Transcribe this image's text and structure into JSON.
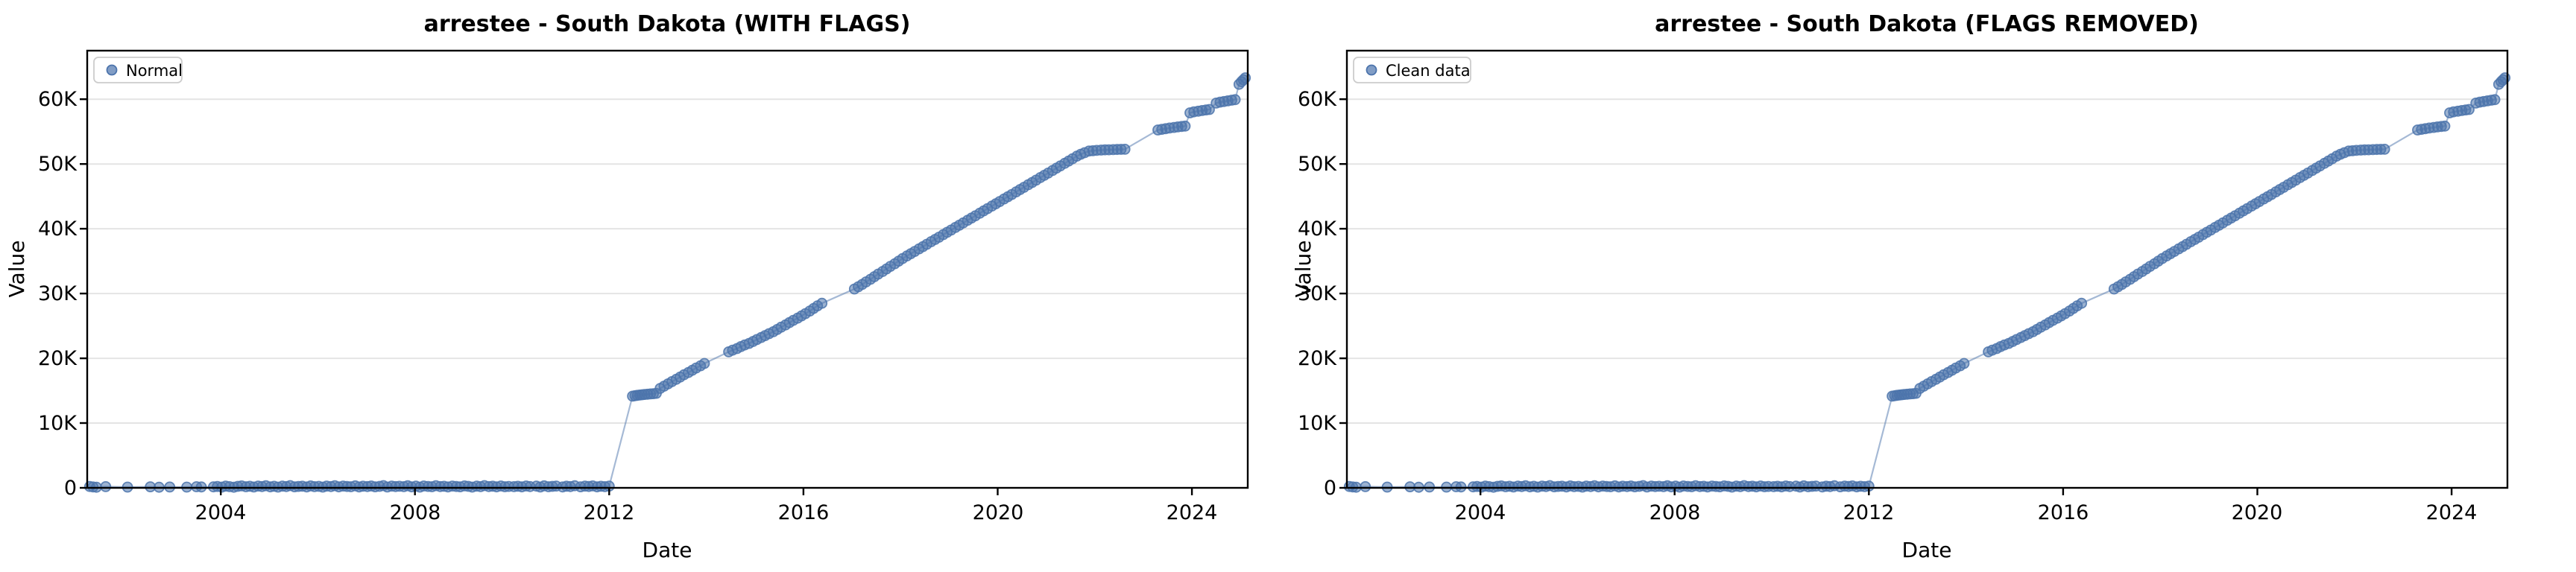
{
  "chart_data": {
    "type": "scatter",
    "charts": [
      {
        "title": "arrestee - South Dakota (WITH FLAGS)",
        "legend_label": "Normal"
      },
      {
        "title": "arrestee - South Dakota (FLAGS REMOVED)",
        "legend_label": "Clean data"
      }
    ],
    "xlabel": "Date",
    "ylabel": "Value",
    "x_ticks": [
      "2004",
      "2008",
      "2012",
      "2016",
      "2020",
      "2024"
    ],
    "x_tick_years": [
      2004,
      2008,
      2012,
      2016,
      2020,
      2024
    ],
    "y_tick_labels": [
      "0",
      "10K",
      "20K",
      "30K",
      "40K",
      "50K",
      "60K"
    ],
    "y_tick_values": [
      0,
      10000,
      20000,
      30000,
      40000,
      50000,
      60000
    ],
    "xlim": [
      2001.25,
      2025.15
    ],
    "ylim": [
      0,
      67500
    ],
    "grid": "horizontal",
    "legend_position": "upper-left",
    "colors": {
      "marker": "#4C74AC",
      "line": "#4C74AC",
      "grid": "#E4E4E4",
      "spine": "#000000",
      "legend_border": "#CCCCCC"
    },
    "points": [
      [
        2001.3,
        210
      ],
      [
        2001.37,
        140
      ],
      [
        2001.44,
        95
      ],
      [
        2001.63,
        180
      ],
      [
        2002.08,
        120
      ],
      [
        2002.55,
        160
      ],
      [
        2002.73,
        90
      ],
      [
        2002.95,
        130
      ],
      [
        2003.3,
        110
      ],
      [
        2003.5,
        170
      ],
      [
        2003.6,
        140
      ],
      [
        2003.85,
        150
      ],
      [
        2003.93,
        210
      ],
      [
        2004.02,
        120
      ],
      [
        2004.1,
        260
      ],
      [
        2004.18,
        180
      ],
      [
        2004.27,
        90
      ],
      [
        2004.35,
        230
      ],
      [
        2004.43,
        300
      ],
      [
        2004.52,
        170
      ],
      [
        2004.6,
        240
      ],
      [
        2004.68,
        130
      ],
      [
        2004.77,
        280
      ],
      [
        2004.85,
        200
      ],
      [
        2004.93,
        320
      ],
      [
        2005.02,
        150
      ],
      [
        2005.1,
        240
      ],
      [
        2005.18,
        110
      ],
      [
        2005.27,
        270
      ],
      [
        2005.35,
        190
      ],
      [
        2005.43,
        340
      ],
      [
        2005.52,
        160
      ],
      [
        2005.6,
        220
      ],
      [
        2005.68,
        250
      ],
      [
        2005.77,
        140
      ],
      [
        2005.85,
        300
      ],
      [
        2005.93,
        180
      ],
      [
        2006.02,
        230
      ],
      [
        2006.1,
        120
      ],
      [
        2006.18,
        260
      ],
      [
        2006.27,
        200
      ],
      [
        2006.35,
        330
      ],
      [
        2006.43,
        150
      ],
      [
        2006.52,
        280
      ],
      [
        2006.6,
        210
      ],
      [
        2006.68,
        170
      ],
      [
        2006.77,
        310
      ],
      [
        2006.85,
        140
      ],
      [
        2006.93,
        250
      ],
      [
        2007.02,
        190
      ],
      [
        2007.1,
        290
      ],
      [
        2007.18,
        160
      ],
      [
        2007.27,
        230
      ],
      [
        2007.35,
        350
      ],
      [
        2007.43,
        130
      ],
      [
        2007.52,
        270
      ],
      [
        2007.6,
        200
      ],
      [
        2007.68,
        240
      ],
      [
        2007.77,
        180
      ],
      [
        2007.85,
        320
      ],
      [
        2007.93,
        150
      ],
      [
        2008.02,
        260
      ],
      [
        2008.1,
        110
      ],
      [
        2008.18,
        290
      ],
      [
        2008.27,
        220
      ],
      [
        2008.35,
        170
      ],
      [
        2008.43,
        330
      ],
      [
        2008.52,
        190
      ],
      [
        2008.6,
        240
      ],
      [
        2008.68,
        140
      ],
      [
        2008.77,
        280
      ],
      [
        2008.85,
        210
      ],
      [
        2008.93,
        160
      ],
      [
        2009.02,
        300
      ],
      [
        2009.1,
        230
      ],
      [
        2009.18,
        120
      ],
      [
        2009.27,
        270
      ],
      [
        2009.35,
        180
      ],
      [
        2009.43,
        340
      ],
      [
        2009.52,
        200
      ],
      [
        2009.6,
        250
      ],
      [
        2009.68,
        150
      ],
      [
        2009.77,
        290
      ],
      [
        2009.85,
        170
      ],
      [
        2009.93,
        220
      ],
      [
        2010.04,
        180
      ],
      [
        2010.12,
        240
      ],
      [
        2010.2,
        150
      ],
      [
        2010.29,
        290
      ],
      [
        2010.37,
        200
      ],
      [
        2010.5,
        260
      ],
      [
        2010.58,
        130
      ],
      [
        2010.66,
        310
      ],
      [
        2010.75,
        170
      ],
      [
        2010.83,
        230
      ],
      [
        2010.91,
        280
      ],
      [
        2011.04,
        140
      ],
      [
        2011.12,
        250
      ],
      [
        2011.2,
        190
      ],
      [
        2011.29,
        320
      ],
      [
        2011.41,
        160
      ],
      [
        2011.5,
        270
      ],
      [
        2011.58,
        210
      ],
      [
        2011.66,
        300
      ],
      [
        2011.75,
        150
      ],
      [
        2011.83,
        240
      ],
      [
        2011.91,
        180
      ],
      [
        2012.0,
        260
      ],
      [
        2012.48,
        14150
      ],
      [
        2012.53,
        14230
      ],
      [
        2012.58,
        14280
      ],
      [
        2012.63,
        14330
      ],
      [
        2012.68,
        14370
      ],
      [
        2012.73,
        14420
      ],
      [
        2012.79,
        14460
      ],
      [
        2012.85,
        14500
      ],
      [
        2012.91,
        14540
      ],
      [
        2012.97,
        14590
      ],
      [
        2013.05,
        15350
      ],
      [
        2013.13,
        15700
      ],
      [
        2013.21,
        16050
      ],
      [
        2013.29,
        16400
      ],
      [
        2013.38,
        16750
      ],
      [
        2013.46,
        17100
      ],
      [
        2013.54,
        17450
      ],
      [
        2013.63,
        17800
      ],
      [
        2013.71,
        18150
      ],
      [
        2013.79,
        18500
      ],
      [
        2013.88,
        18850
      ],
      [
        2013.96,
        19200
      ],
      [
        2014.46,
        21000
      ],
      [
        2014.54,
        21250
      ],
      [
        2014.63,
        21500
      ],
      [
        2014.71,
        21800
      ],
      [
        2014.79,
        22050
      ],
      [
        2014.88,
        22300
      ],
      [
        2014.96,
        22600
      ],
      [
        2015.04,
        22900
      ],
      [
        2015.13,
        23200
      ],
      [
        2015.21,
        23500
      ],
      [
        2015.29,
        23800
      ],
      [
        2015.38,
        24100
      ],
      [
        2015.46,
        24450
      ],
      [
        2015.54,
        24800
      ],
      [
        2015.63,
        25150
      ],
      [
        2015.71,
        25500
      ],
      [
        2015.79,
        25850
      ],
      [
        2015.88,
        26200
      ],
      [
        2015.96,
        26550
      ],
      [
        2016.04,
        26900
      ],
      [
        2016.13,
        27300
      ],
      [
        2016.21,
        27700
      ],
      [
        2016.29,
        28100
      ],
      [
        2016.38,
        28500
      ],
      [
        2017.05,
        30700
      ],
      [
        2017.13,
        31050
      ],
      [
        2017.21,
        31400
      ],
      [
        2017.29,
        31800
      ],
      [
        2017.38,
        32200
      ],
      [
        2017.46,
        32600
      ],
      [
        2017.54,
        33000
      ],
      [
        2017.63,
        33400
      ],
      [
        2017.71,
        33800
      ],
      [
        2017.79,
        34200
      ],
      [
        2017.88,
        34600
      ],
      [
        2017.96,
        35000
      ],
      [
        2018.04,
        35400
      ],
      [
        2018.13,
        35800
      ],
      [
        2018.21,
        36150
      ],
      [
        2018.29,
        36500
      ],
      [
        2018.38,
        36900
      ],
      [
        2018.46,
        37250
      ],
      [
        2018.54,
        37600
      ],
      [
        2018.63,
        38000
      ],
      [
        2018.71,
        38350
      ],
      [
        2018.79,
        38700
      ],
      [
        2018.88,
        39100
      ],
      [
        2018.96,
        39450
      ],
      [
        2019.04,
        39800
      ],
      [
        2019.13,
        40200
      ],
      [
        2019.21,
        40550
      ],
      [
        2019.29,
        40900
      ],
      [
        2019.38,
        41300
      ],
      [
        2019.46,
        41650
      ],
      [
        2019.54,
        42000
      ],
      [
        2019.63,
        42400
      ],
      [
        2019.71,
        42750
      ],
      [
        2019.79,
        43100
      ],
      [
        2019.88,
        43500
      ],
      [
        2019.96,
        43850
      ],
      [
        2020.04,
        44200
      ],
      [
        2020.13,
        44600
      ],
      [
        2020.21,
        44950
      ],
      [
        2020.29,
        45300
      ],
      [
        2020.38,
        45700
      ],
      [
        2020.46,
        46050
      ],
      [
        2020.54,
        46400
      ],
      [
        2020.63,
        46800
      ],
      [
        2020.71,
        47150
      ],
      [
        2020.79,
        47500
      ],
      [
        2020.88,
        47900
      ],
      [
        2020.96,
        48250
      ],
      [
        2021.04,
        48600
      ],
      [
        2021.13,
        49000
      ],
      [
        2021.21,
        49350
      ],
      [
        2021.29,
        49700
      ],
      [
        2021.38,
        50100
      ],
      [
        2021.46,
        50450
      ],
      [
        2021.54,
        50800
      ],
      [
        2021.63,
        51200
      ],
      [
        2021.71,
        51500
      ],
      [
        2021.79,
        51750
      ],
      [
        2021.88,
        52000
      ],
      [
        2021.96,
        52050
      ],
      [
        2022.04,
        52100
      ],
      [
        2022.13,
        52150
      ],
      [
        2022.21,
        52180
      ],
      [
        2022.29,
        52200
      ],
      [
        2022.38,
        52220
      ],
      [
        2022.46,
        52240
      ],
      [
        2022.54,
        52260
      ],
      [
        2022.62,
        52280
      ],
      [
        2023.3,
        55250
      ],
      [
        2023.38,
        55350
      ],
      [
        2023.46,
        55450
      ],
      [
        2023.54,
        55550
      ],
      [
        2023.63,
        55650
      ],
      [
        2023.71,
        55720
      ],
      [
        2023.79,
        55790
      ],
      [
        2023.86,
        55850
      ],
      [
        2023.96,
        57900
      ],
      [
        2024.04,
        58050
      ],
      [
        2024.13,
        58150
      ],
      [
        2024.21,
        58250
      ],
      [
        2024.29,
        58350
      ],
      [
        2024.36,
        58420
      ],
      [
        2024.5,
        59400
      ],
      [
        2024.58,
        59550
      ],
      [
        2024.66,
        59650
      ],
      [
        2024.74,
        59750
      ],
      [
        2024.82,
        59850
      ],
      [
        2024.89,
        59930
      ],
      [
        2024.97,
        62300
      ],
      [
        2025.02,
        62700
      ],
      [
        2025.06,
        63000
      ],
      [
        2025.1,
        63300
      ]
    ]
  }
}
